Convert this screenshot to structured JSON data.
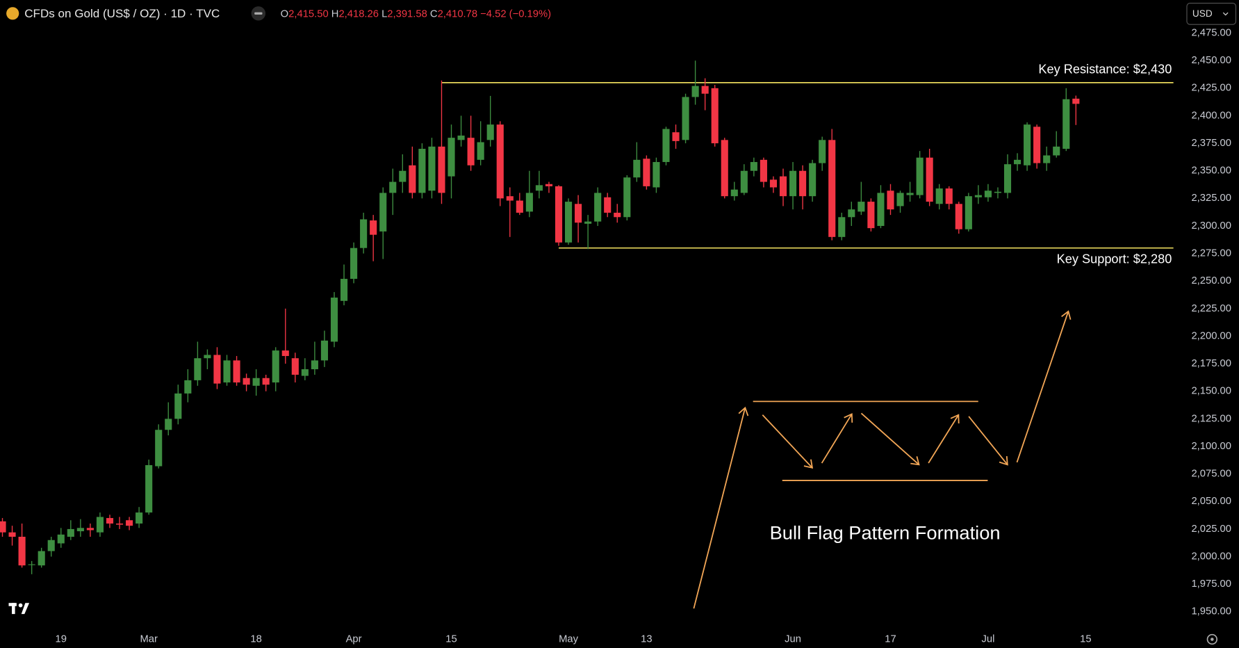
{
  "chart_data": {
    "type": "candlestick",
    "title": "CFDs on Gold (US$ / OZ) · 1D · TVC",
    "legend": [
      {
        "key": "O",
        "value": "2,415.50"
      },
      {
        "key": "H",
        "value": "2,418.26"
      },
      {
        "key": "L",
        "value": "2,391.58"
      },
      {
        "key": "C",
        "value": "2,410.78"
      }
    ],
    "change": "−4.52 (−0.19%)",
    "currency": "USD",
    "up_color": "#3e8e41",
    "down_color": "#f23645",
    "open": [
      2032,
      2022,
      2018,
      1993,
      1992,
      2005,
      2012,
      2018,
      2023,
      2026,
      2022,
      2035,
      2030,
      2033,
      2030,
      2040,
      2082,
      2115,
      2125,
      2148,
      2160,
      2180,
      2183,
      2158,
      2178,
      2162,
      2155,
      2162,
      2158,
      2187,
      2180,
      2164,
      2170,
      2178,
      2195,
      2232,
      2252,
      2280,
      2305,
      2295,
      2330,
      2340,
      2355,
      2330,
      2332,
      2372,
      2345,
      2378,
      2380,
      2360,
      2378,
      2392,
      2327,
      2323,
      2313,
      2332,
      2338,
      2336,
      2285,
      2320,
      2302,
      2304,
      2326,
      2312,
      2308,
      2344,
      2361,
      2335,
      2358,
      2385,
      2378,
      2417,
      2427,
      2425,
      2378,
      2327,
      2330,
      2350,
      2360,
      2342,
      2345,
      2327,
      2350,
      2327,
      2357,
      2378,
      2290,
      2308,
      2313,
      2322,
      2300,
      2332,
      2318,
      2328,
      2328,
      2362,
      2320,
      2334,
      2320,
      2297,
      2326,
      2326,
      2330,
      2330,
      2356,
      2355,
      2390,
      2357,
      2364,
      2370,
      2415.5
    ],
    "high": [
      2035,
      2028,
      2030,
      1996,
      2008,
      2018,
      2026,
      2033,
      2034,
      2030,
      2040,
      2038,
      2036,
      2036,
      2045,
      2088,
      2120,
      2140,
      2156,
      2170,
      2195,
      2188,
      2190,
      2183,
      2182,
      2166,
      2170,
      2165,
      2190,
      2225,
      2185,
      2180,
      2195,
      2205,
      2240,
      2265,
      2285,
      2312,
      2310,
      2335,
      2352,
      2365,
      2372,
      2375,
      2380,
      2432,
      2392,
      2400,
      2400,
      2395,
      2418,
      2395,
      2335,
      2330,
      2350,
      2350,
      2340,
      2337,
      2325,
      2328,
      2310,
      2335,
      2330,
      2320,
      2346,
      2376,
      2364,
      2362,
      2390,
      2392,
      2420,
      2450,
      2434,
      2428,
      2380,
      2340,
      2356,
      2362,
      2362,
      2345,
      2352,
      2358,
      2355,
      2360,
      2381,
      2388,
      2312,
      2322,
      2340,
      2325,
      2337,
      2338,
      2332,
      2340,
      2368,
      2370,
      2338,
      2336,
      2322,
      2330,
      2337,
      2338,
      2335,
      2365,
      2366,
      2394,
      2392,
      2372,
      2386,
      2425,
      2418.26
    ],
    "low": [
      2018,
      2010,
      1990,
      1984,
      1990,
      2000,
      2008,
      2015,
      2018,
      2018,
      2018,
      2026,
      2025,
      2024,
      2026,
      2038,
      2080,
      2110,
      2120,
      2140,
      2155,
      2170,
      2152,
      2155,
      2155,
      2150,
      2146,
      2150,
      2150,
      2175,
      2158,
      2160,
      2165,
      2172,
      2190,
      2228,
      2248,
      2275,
      2268,
      2270,
      2310,
      2330,
      2325,
      2325,
      2325,
      2320,
      2325,
      2372,
      2350,
      2355,
      2372,
      2318,
      2290,
      2310,
      2308,
      2325,
      2330,
      2282,
      2283,
      2285,
      2279,
      2300,
      2308,
      2303,
      2305,
      2340,
      2333,
      2330,
      2355,
      2370,
      2375,
      2410,
      2405,
      2372,
      2325,
      2323,
      2328,
      2345,
      2335,
      2330,
      2318,
      2315,
      2315,
      2322,
      2350,
      2287,
      2287,
      2300,
      2310,
      2295,
      2298,
      2310,
      2312,
      2322,
      2325,
      2318,
      2315,
      2315,
      2293,
      2295,
      2320,
      2322,
      2325,
      2325,
      2350,
      2350,
      2352,
      2350,
      2362,
      2368,
      2391.58
    ],
    "close": [
      2022,
      2018,
      1992,
      1993,
      2005,
      2015,
      2020,
      2025,
      2026,
      2024,
      2036,
      2030,
      2029,
      2028,
      2040,
      2083,
      2115,
      2125,
      2148,
      2160,
      2180,
      2183,
      2157,
      2178,
      2158,
      2156,
      2162,
      2156,
      2187,
      2182,
      2165,
      2170,
      2178,
      2196,
      2235,
      2252,
      2280,
      2306,
      2292,
      2330,
      2340,
      2350,
      2330,
      2370,
      2372,
      2330,
      2380,
      2382,
      2355,
      2376,
      2392,
      2325,
      2323,
      2312,
      2330,
      2337,
      2336,
      2285,
      2322,
      2303,
      2304,
      2330,
      2312,
      2308,
      2344,
      2360,
      2336,
      2358,
      2388,
      2377,
      2417,
      2427,
      2420,
      2375,
      2327,
      2333,
      2350,
      2358,
      2340,
      2335,
      2327,
      2350,
      2327,
      2357,
      2378,
      2290,
      2308,
      2315,
      2322,
      2298,
      2330,
      2315,
      2330,
      2330,
      2362,
      2322,
      2334,
      2320,
      2297,
      2327,
      2328,
      2332,
      2331,
      2356,
      2360,
      2392,
      2357,
      2364,
      2372,
      2415,
      2410.78
    ],
    "xlim": [
      -0.25,
      120.8
    ],
    "xticks": [
      {
        "value": 6,
        "label": "19"
      },
      {
        "value": 15,
        "label": "Mar"
      },
      {
        "value": 26,
        "label": "18"
      },
      {
        "value": 36,
        "label": "Apr"
      },
      {
        "value": 46,
        "label": "15"
      },
      {
        "value": 58,
        "label": "May"
      },
      {
        "value": 66,
        "label": "13"
      },
      {
        "value": 81,
        "label": "Jun"
      },
      {
        "value": 91,
        "label": "17"
      },
      {
        "value": 101,
        "label": "Jul"
      },
      {
        "value": 111,
        "label": "15"
      }
    ],
    "ylim": [
      1935,
      2505
    ],
    "yticks": [
      {
        "value": 1950,
        "label": "1,950.00"
      },
      {
        "value": 1975,
        "label": "1,975.00"
      },
      {
        "value": 2000,
        "label": "2,000.00"
      },
      {
        "value": 2025,
        "label": "2,025.00"
      },
      {
        "value": 2050,
        "label": "2,050.00"
      },
      {
        "value": 2075,
        "label": "2,075.00"
      },
      {
        "value": 2100,
        "label": "2,100.00"
      },
      {
        "value": 2125,
        "label": "2,125.00"
      },
      {
        "value": 2150,
        "label": "2,150.00"
      },
      {
        "value": 2175,
        "label": "2,175.00"
      },
      {
        "value": 2200,
        "label": "2,200.00"
      },
      {
        "value": 2225,
        "label": "2,225.00"
      },
      {
        "value": 2250,
        "label": "2,250.00"
      },
      {
        "value": 2275,
        "label": "2,275.00"
      },
      {
        "value": 2300,
        "label": "2,300.00"
      },
      {
        "value": 2325,
        "label": "2,325.00"
      },
      {
        "value": 2350,
        "label": "2,350.00"
      },
      {
        "value": 2375,
        "label": "2,375.00"
      },
      {
        "value": 2400,
        "label": "2,400.00"
      },
      {
        "value": 2425,
        "label": "2,425.00"
      },
      {
        "value": 2450,
        "label": "2,450.00"
      },
      {
        "value": 2475,
        "label": "2,475.00"
      }
    ],
    "levels": [
      {
        "label": "Key Resistance: $2,430",
        "value": 2430,
        "start": 45,
        "color": "#e8d75a"
      },
      {
        "label": "Key Support: $2,280",
        "value": 2280,
        "start": 57,
        "color": "#e8d75a"
      }
    ],
    "annotation": "Bull Flag Pattern Formation"
  }
}
